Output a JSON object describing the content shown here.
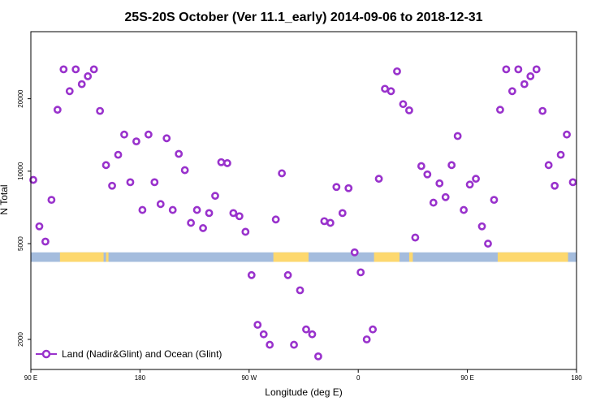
{
  "chart_data": {
    "type": "scatter",
    "title": "25S-20S October (Ver 11.1_early)   2014-09-06 to 2018-12-31",
    "xlabel": "Longitude (deg E)",
    "ylabel": "N Total",
    "x_ticks": [
      {
        "value": 90,
        "label": "90 E"
      },
      {
        "value": 180,
        "label": "180"
      },
      {
        "value": 270,
        "label": "90 W"
      },
      {
        "value": 360,
        "label": "0"
      },
      {
        "value": 450,
        "label": "90 E"
      },
      {
        "value": 540,
        "label": "180"
      }
    ],
    "y_ticks": [
      {
        "value": 2000,
        "label": "2000"
      },
      {
        "value": 5000,
        "label": "5000"
      },
      {
        "value": 10000,
        "label": "10000"
      },
      {
        "value": 20000,
        "label": "20000"
      }
    ],
    "xlim": [
      90,
      540
    ],
    "ylim": [
      1500,
      38000
    ],
    "y_scale": "log",
    "grid": false,
    "legend": {
      "position": "bottom-left",
      "entries": [
        {
          "label": "Land (Nadir&Glint) and Ocean (Glint)",
          "color": "#9932CC"
        }
      ]
    },
    "surface_band": {
      "y_range": [
        4200,
        4600
      ],
      "ocean_color": "#A4BCDD",
      "land_color": "#FDD86E",
      "land_segments": [
        [
          114,
          150
        ],
        [
          152,
          154
        ],
        [
          290,
          319
        ],
        [
          373,
          394
        ],
        [
          402,
          405
        ],
        [
          475,
          533
        ]
      ]
    },
    "series": [
      {
        "name": "Land (Nadir&Glint) and Ocean (Glint)",
        "color": "#9932CC",
        "x": [
          92,
          97,
          102,
          107,
          112,
          117,
          122,
          127,
          132,
          137,
          142,
          147,
          152,
          157,
          162,
          167,
          172,
          177,
          182,
          187,
          192,
          197,
          202,
          207,
          212,
          217,
          222,
          227,
          232,
          237,
          242,
          247,
          252,
          257,
          262,
          267,
          272,
          277,
          282,
          287,
          292,
          297,
          302,
          307,
          312,
          317,
          322,
          327,
          332,
          337,
          342,
          347,
          352,
          357,
          362,
          367,
          372,
          377,
          382,
          387,
          392,
          397,
          402,
          407,
          412,
          417,
          422,
          427,
          432,
          437,
          442,
          447,
          452,
          457,
          462,
          467,
          472,
          477,
          482,
          487,
          492,
          497,
          502,
          507,
          512,
          517,
          522,
          527,
          532,
          537
        ],
        "y": [
          9200,
          5900,
          5100,
          7600,
          18000,
          26500,
          21500,
          26500,
          23000,
          24800,
          26500,
          17800,
          10600,
          8700,
          11700,
          14200,
          9000,
          13300,
          6900,
          14200,
          9000,
          7300,
          13700,
          6900,
          11800,
          10100,
          6100,
          6900,
          5800,
          6700,
          7900,
          10900,
          10800,
          6700,
          6500,
          5600,
          3700,
          2300,
          2100,
          1900,
          6300,
          9800,
          3700,
          1900,
          3200,
          2200,
          2100,
          1700,
          6200,
          6100,
          8600,
          6700,
          8500,
          4600,
          3800,
          2000,
          2200,
          9300,
          22000,
          21500,
          26000,
          19000,
          17900,
          5300,
          10500,
          9700,
          7400,
          8900,
          7800,
          10600,
          14000,
          6900,
          8800,
          9300,
          5900,
          5000,
          7600,
          18000,
          26500,
          21500,
          26500,
          23000,
          24800,
          26500,
          17800,
          10600,
          8700,
          11700,
          14200,
          9000
        ]
      }
    ]
  }
}
